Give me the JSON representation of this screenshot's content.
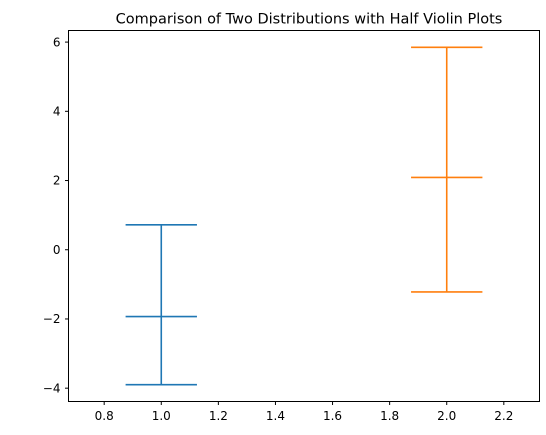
{
  "chart_data": {
    "type": "violin",
    "title": "Comparison of Two Distributions with Half Violin Plots",
    "xlabel": "",
    "ylabel": "",
    "xlim": [
      0.675,
      2.325
    ],
    "ylim": [
      -4.385,
      6.335
    ],
    "x_ticks": [
      0.8,
      1.0,
      1.2,
      1.4,
      1.6,
      1.8,
      2.0,
      2.2
    ],
    "y_ticks": [
      -4,
      -2,
      0,
      2,
      4,
      6
    ],
    "x_tick_labels": [
      "0.8",
      "1.0",
      "1.2",
      "1.4",
      "1.6",
      "1.8",
      "2.0",
      "2.2"
    ],
    "y_tick_labels": [
      "−4",
      "−2",
      "0",
      "2",
      "4",
      "6"
    ],
    "grid": false,
    "legend": false,
    "series": [
      {
        "position": 1,
        "min": -3.9,
        "median": -1.93,
        "max": 0.72,
        "cap_width": 0.25,
        "color": "#1f77b4"
      },
      {
        "position": 2,
        "min": -1.22,
        "median": 2.09,
        "max": 5.85,
        "cap_width": 0.25,
        "color": "#ff7f0e"
      }
    ]
  }
}
